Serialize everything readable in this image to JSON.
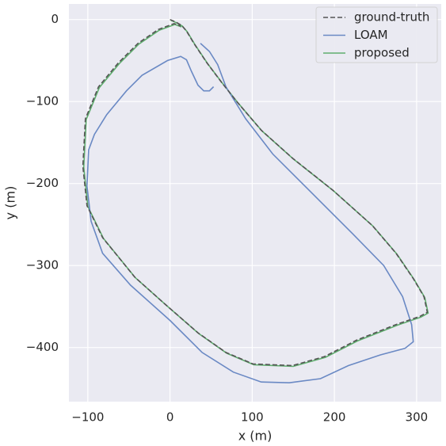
{
  "chart_data": {
    "type": "line",
    "xlabel": "x (m)",
    "ylabel": "y (m)",
    "xlim": [
      -123,
      330
    ],
    "ylim": [
      -466,
      19
    ],
    "xticks": [
      {
        "value": -100,
        "label": "−100"
      },
      0,
      100,
      200,
      300
    ],
    "yticks": [
      0,
      {
        "value": -100,
        "label": "−100"
      },
      {
        "value": -200,
        "label": "−200"
      },
      {
        "value": -300,
        "label": "−300"
      },
      {
        "value": -400,
        "label": "−400"
      }
    ],
    "grid": true,
    "legend": "upper right",
    "series": [
      {
        "name": "ground-truth",
        "color": "#555555",
        "linestyle": "dashed",
        "x": [
          0,
          7,
          14,
          20,
          29,
          45,
          63,
          82,
          111,
          149,
          198,
          246,
          275,
          296,
          309,
          313,
          304,
          275,
          227,
          188,
          149,
          101,
          68,
          34,
          -5,
          -43,
          -82,
          -101,
          -106,
          -103,
          -87,
          -63,
          -39,
          -14,
          5,
          13
        ],
        "values": [
          0,
          -3,
          -7,
          -14,
          -29,
          -53,
          -77,
          -101,
          -135,
          -169,
          -208,
          -251,
          -285,
          -316,
          -338,
          -357,
          -362,
          -372,
          -391,
          -411,
          -422,
          -420,
          -406,
          -382,
          -348,
          -314,
          -266,
          -227,
          -179,
          -121,
          -82,
          -53,
          -29,
          -12,
          -5,
          -8
        ]
      },
      {
        "name": "LOAM",
        "color": "#6a89c4",
        "linestyle": "solid",
        "x": [
          37,
          48,
          58,
          68,
          92,
          125,
          174,
          222,
          260,
          283,
          294,
          296,
          286,
          256,
          217,
          183,
          145,
          111,
          77,
          39,
          0,
          -48,
          -82,
          -96,
          -101,
          -99,
          -92,
          -77,
          -53,
          -34,
          -3,
          13,
          20,
          26,
          34,
          41,
          48,
          53
        ],
        "values": [
          -29,
          -39,
          -55,
          -82,
          -121,
          -164,
          -213,
          -261,
          -300,
          -338,
          -372,
          -393,
          -401,
          -409,
          -422,
          -438,
          -443,
          -442,
          -430,
          -406,
          -367,
          -324,
          -285,
          -246,
          -203,
          -159,
          -140,
          -116,
          -87,
          -68,
          -50,
          -45,
          -49,
          -63,
          -80,
          -87,
          -87,
          -82
        ]
      },
      {
        "name": "proposed",
        "color": "#5fae6e",
        "linestyle": "solid",
        "x": [
          1,
          8,
          15,
          21,
          30,
          46,
          64,
          83,
          112,
          150,
          199,
          247,
          276,
          297,
          310,
          314,
          305,
          276,
          228,
          189,
          150,
          102,
          69,
          35,
          -4,
          -42,
          -81,
          -100,
          -105,
          -102,
          -86,
          -62,
          -38,
          -13,
          6,
          14
        ],
        "values": [
          -1,
          -4,
          -8,
          -15,
          -30,
          -54,
          -78,
          -102,
          -136,
          -170,
          -209,
          -252,
          -286,
          -317,
          -339,
          -358,
          -363,
          -373,
          -392,
          -412,
          -423,
          -421,
          -407,
          -383,
          -349,
          -315,
          -267,
          -228,
          -180,
          -122,
          -83,
          -54,
          -30,
          -13,
          -6,
          -9
        ]
      }
    ]
  }
}
